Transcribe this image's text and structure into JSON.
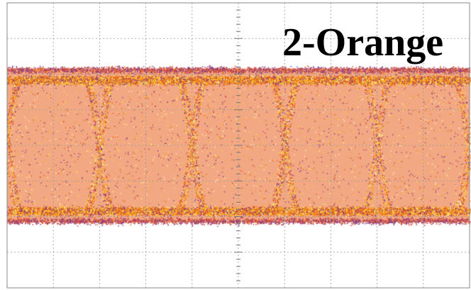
{
  "chart_data": {
    "type": "eye-diagram",
    "title": "2-Orange",
    "grid": true,
    "grid_divisions": {
      "x": 10,
      "y": 8
    },
    "xlabel": "",
    "ylabel": "",
    "eye_pattern": {
      "eye_openings_visible": 5,
      "upper_rail_division": 2,
      "lower_rail_division": 6,
      "crossing_level_division": 4
    },
    "intensity_colors": [
      "#7a3a8a",
      "#c0405a",
      "#e8601e",
      "#f4a018",
      "#ffd640",
      "#fff6b0"
    ]
  }
}
